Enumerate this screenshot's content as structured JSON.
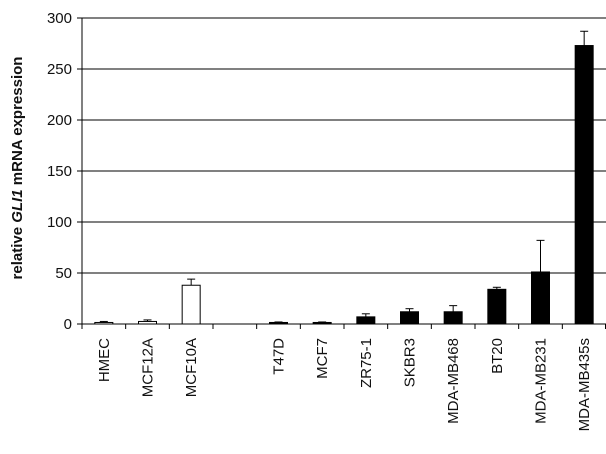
{
  "chart_data": {
    "type": "bar",
    "title": "",
    "xlabel": "",
    "ylabel_parts": [
      "relative ",
      "GLI1",
      " mRNA expression"
    ],
    "ylim": [
      0,
      300
    ],
    "yticks": [
      0,
      50,
      100,
      150,
      200,
      250,
      300
    ],
    "grid": true,
    "legend": "none",
    "categories": [
      "HMEC",
      "MCF12A",
      "MCF10A",
      "",
      "T47D",
      "MCF7",
      "ZR75-1",
      "SKBR3",
      "MDA-MB468",
      "BT20",
      "MDA-MB231",
      "MDA-MB435s"
    ],
    "values": [
      1.5,
      2.5,
      38,
      null,
      1.5,
      1.5,
      7,
      12,
      12,
      34,
      51,
      273
    ],
    "errors": [
      1,
      1.5,
      6,
      null,
      0.5,
      0.5,
      3,
      3,
      6,
      2,
      31,
      14
    ],
    "fill": [
      "#ffffff",
      "#ffffff",
      "#ffffff",
      null,
      "#000000",
      "#000000",
      "#000000",
      "#000000",
      "#000000",
      "#000000",
      "#000000",
      "#000000"
    ],
    "colors": {
      "outline": "#000000",
      "grid": "#000000",
      "background": "#ffffff"
    }
  }
}
